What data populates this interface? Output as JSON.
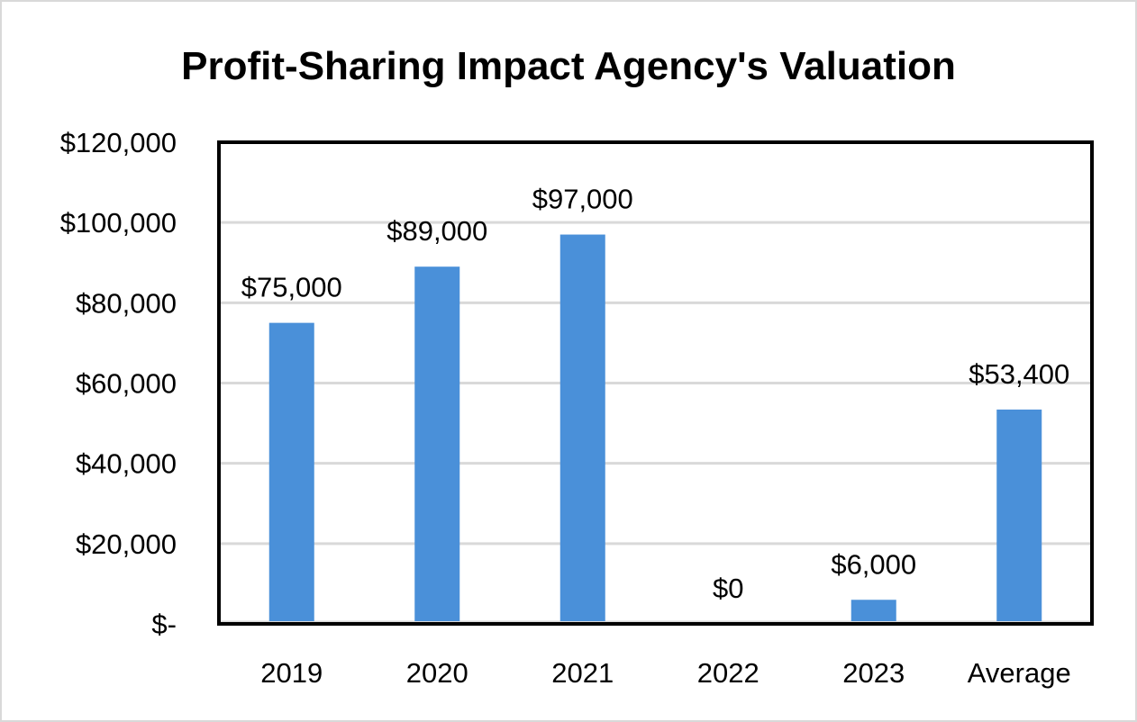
{
  "chart_data": {
    "type": "bar",
    "title": "Profit-Sharing Impact Agency's Valuation",
    "xlabel": "",
    "ylabel": "",
    "categories": [
      "2019",
      "2020",
      "2021",
      "2022",
      "2023",
      "Average"
    ],
    "values": [
      75000,
      89000,
      97000,
      0,
      6000,
      53400
    ],
    "data_labels": [
      "$75,000",
      "$89,000",
      "$97,000",
      "$0",
      "$6,000",
      "$53,400"
    ],
    "ylim": [
      0,
      120000
    ],
    "y_ticks": [
      0,
      20000,
      40000,
      60000,
      80000,
      100000,
      120000
    ],
    "y_tick_labels": [
      "$-",
      "$20,000",
      "$40,000",
      "$60,000",
      "$80,000",
      "$100,000",
      "$120,000"
    ],
    "grid": true,
    "legend": "none",
    "bar_color": "#4a90d9"
  }
}
